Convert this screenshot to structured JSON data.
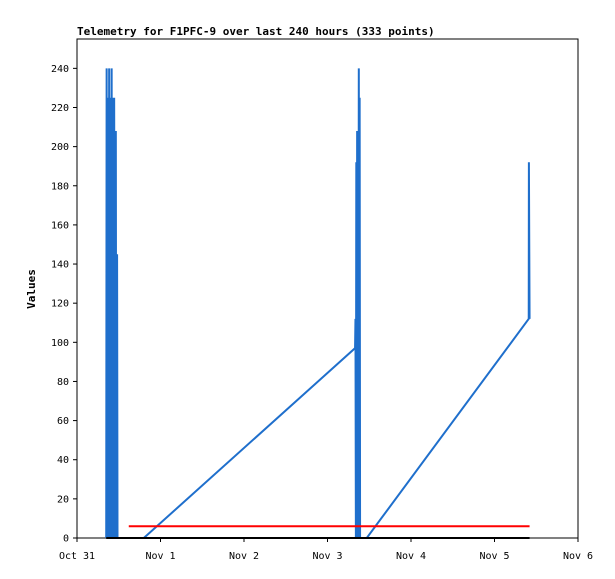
{
  "chart_data": {
    "type": "line",
    "title": "Telemetry for F1PFC-9 over last 240 hours (333 points)",
    "xlabel": "",
    "ylabel": "Values",
    "xlim": [
      0,
      6
    ],
    "ylim": [
      0,
      255
    ],
    "x_tick_values": [
      0,
      1,
      2,
      3,
      4,
      5,
      6
    ],
    "x_tick_labels": [
      "Oct 31",
      "Nov 1",
      "Nov 2",
      "Nov 3",
      "Nov 4",
      "Nov 5",
      "Nov 6"
    ],
    "y_ticks": [
      0,
      20,
      40,
      60,
      80,
      100,
      120,
      140,
      160,
      180,
      200,
      220,
      240
    ],
    "grid": false,
    "legend": "none",
    "series": [
      {
        "color": "#1f6fcc",
        "x": [
          0.35,
          0.355,
          0.36,
          0.365,
          0.37,
          0.375,
          0.38,
          0.385,
          0.39,
          0.395,
          0.4,
          0.405,
          0.41,
          0.415,
          0.42,
          0.425,
          0.43,
          0.435,
          0.44,
          0.445,
          0.45,
          0.455,
          0.46,
          0.465,
          0.47,
          0.475,
          0.48,
          0.485,
          0.49,
          0.5,
          0.51,
          0.52,
          0.53,
          0.54,
          0.55,
          0.56,
          0.57,
          0.575,
          0.58,
          0.59,
          0.6,
          0.61,
          0.62,
          0.625,
          0.63,
          0.64,
          0.65,
          0.655,
          0.66,
          0.67,
          0.68,
          0.685,
          0.69,
          0.7,
          0.71,
          0.715,
          0.72,
          0.74,
          0.745,
          0.75,
          0.76,
          0.8,
          3.33,
          3.335,
          3.34,
          3.345,
          3.35,
          3.355,
          3.36,
          3.365,
          3.37,
          3.375,
          3.38,
          3.385,
          3.39,
          3.395,
          3.4,
          3.405,
          3.41,
          3.415,
          3.42,
          3.425,
          3.43,
          3.44,
          3.45,
          3.46,
          3.47,
          5.41,
          5.412,
          5.42
        ],
        "y": [
          0,
          240,
          0,
          208,
          0,
          225,
          0,
          240,
          0,
          208,
          20,
          225,
          0,
          240,
          0,
          225,
          20,
          208,
          0,
          225,
          106,
          0,
          64,
          208,
          0,
          22,
          145,
          0,
          0,
          0,
          0,
          0,
          0,
          0,
          0,
          0,
          0,
          0,
          0,
          0,
          0,
          0,
          0,
          0,
          0,
          0,
          0,
          0,
          0,
          0,
          0,
          0,
          0,
          0,
          0,
          0,
          0,
          0,
          0,
          0,
          0,
          0,
          97,
          112,
          0,
          192,
          0,
          208,
          0,
          177,
          0,
          240,
          0,
          225,
          0,
          0,
          0,
          0,
          0,
          0,
          0,
          0,
          0,
          0,
          0,
          0,
          0,
          112,
          192,
          112
        ]
      },
      {
        "color": "#ff0000",
        "x": [
          0.62,
          5.42
        ],
        "y": [
          6,
          6
        ]
      },
      {
        "color": "#000000",
        "x": [
          0.35,
          5.42
        ],
        "y": [
          0,
          0
        ]
      }
    ]
  }
}
